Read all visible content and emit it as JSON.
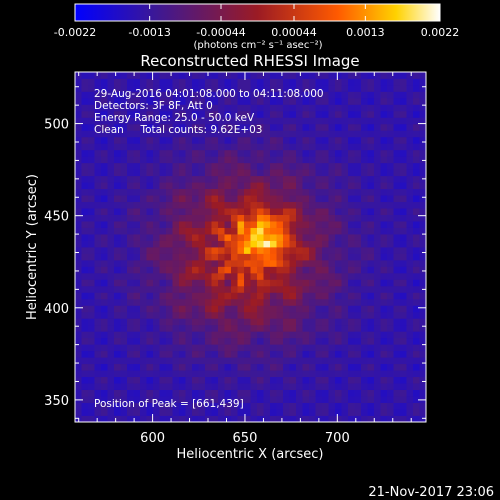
{
  "chart_data": {
    "type": "heatmap",
    "title": "Reconstructed RHESSI Image",
    "xlabel": "Heliocentric X (arcsec)",
    "ylabel": "Heliocentric Y (arcsec)",
    "xlim": [
      558,
      748
    ],
    "ylim": [
      338,
      528
    ],
    "x_ticks": [
      600,
      650,
      700
    ],
    "y_ticks": [
      350,
      400,
      450,
      500
    ],
    "colorbar": {
      "min": -0.0022,
      "max": 0.0022,
      "ticks": [
        -0.0022,
        -0.0013,
        -0.00044,
        0.00044,
        0.0013,
        0.0022
      ],
      "tick_labels": [
        "-0.0022",
        "-0.0013",
        "-0.00044",
        "0.00044",
        "0.0013",
        "0.0022"
      ],
      "units_label": "(photons cm⁻² s⁻¹ asec⁻²)",
      "colormap": [
        "#0000ff",
        "#3c1896",
        "#9b1b24",
        "#ff5a00",
        "#ffd200",
        "#ffffff"
      ]
    },
    "peak": {
      "x": 661,
      "y": 439,
      "value": 0.0022
    },
    "annotations": [
      "29-Aug-2016 04:01:08.000 to 04:11:08.000",
      "Detectors: 3F 8F, Att 0",
      "Energy Range: 25.0 - 50.0 keV",
      "Clean     Total counts: 9.62E+03"
    ],
    "peak_label": "Position of Peak = [661,439]",
    "plot_date": "21-Nov-2017 23:06"
  }
}
